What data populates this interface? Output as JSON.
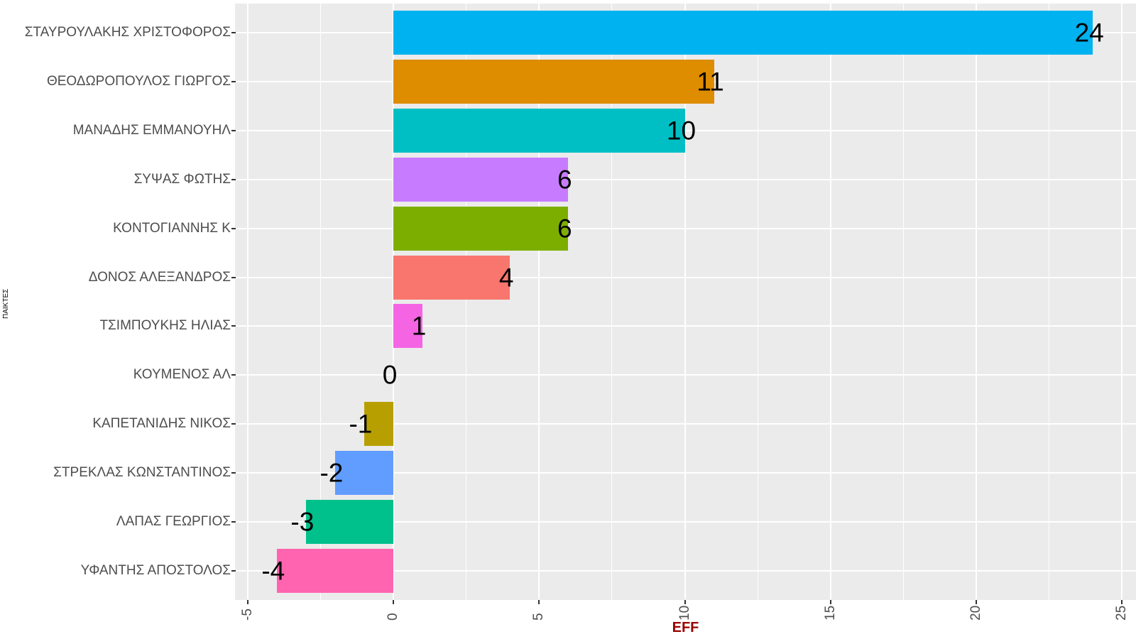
{
  "figure": {
    "background": "#FFFFFF",
    "panel_background": "#EBEBEB",
    "grid_color": "#FFFFFF",
    "tick_mark_color": "#333333",
    "axis_text_color": "#4D4D4D",
    "bar_value_label_color": "#000000"
  },
  "chart_data": {
    "type": "bar",
    "orientation": "horizontal",
    "title": "",
    "xlabel": "EFF",
    "xlabel_color": "#9A0000",
    "ylabel": "ΠΑΙΚΤΕΣ",
    "categories": [
      "ΣΤΑΥΡΟΥΛΑΚΗΣ ΧΡΙΣΤΟΦΟΡΟΣ",
      "ΘΕΟΔΩΡΟΠΟΥΛΟΣ ΓΙΩΡΓΟΣ",
      "ΜΑΝΑΔΗΣ ΕΜΜΑΝΟΥΗΛ",
      "ΣΥΨΑΣ ΦΩΤΗΣ",
      "ΚΟΝΤΟΓΙΑΝΝΗΣ Κ",
      "ΔΟΝΟΣ ΑΛΕΞΑΝΔΡΟΣ",
      "ΤΣΙΜΠΟΥΚΗΣ ΗΛΙΑΣ",
      "ΚΟΥΜΕΝΟΣ ΑΛ",
      "ΚΑΠΕΤΑΝΙΔΗΣ ΝΙΚΟΣ",
      "ΣΤΡΕΚΛΑΣ ΚΩΝΣΤΑΝΤΙΝΟΣ",
      "ΛΑΠΑΣ ΓΕΩΡΓΙΟΣ",
      "ΥΦΑΝΤΗΣ ΑΠΟΣΤΟΛΟΣ"
    ],
    "values": [
      24,
      11,
      10,
      6,
      6,
      4,
      1,
      0,
      -1,
      -2,
      -3,
      -4
    ],
    "bar_colors": [
      "#00B2F0",
      "#DE8C00",
      "#00BFC4",
      "#C77CFF",
      "#7CAE00",
      "#F8766D",
      "#F564E3",
      "#00BA38",
      "#B79F00",
      "#619CFF",
      "#00C08B",
      "#FF64B0"
    ],
    "value_labels": [
      "24",
      "11",
      "10",
      "6",
      "6",
      "4",
      "1",
      "0",
      "-1",
      "-2",
      "-3",
      "-4"
    ],
    "x_tick_labels": [
      "-5",
      "0",
      "5",
      "10",
      "15",
      "20",
      "25"
    ],
    "x_tick_values": [
      -5,
      0,
      5,
      10,
      15,
      20,
      25
    ],
    "x_minor_tick_values": [
      -2.5,
      2.5,
      7.5,
      12.5,
      17.5,
      22.5
    ],
    "xlim": [
      -5.43,
      25.48
    ],
    "grid": true,
    "legend": false
  }
}
